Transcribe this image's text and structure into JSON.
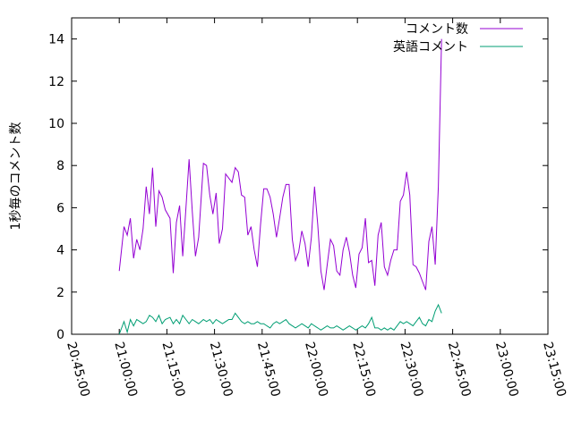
{
  "chart_data": {
    "type": "line",
    "title": "",
    "xlabel": "",
    "ylabel": "1秒毎のコメント数",
    "x_range": [
      "20:45:00",
      "23:15:00"
    ],
    "ylim": [
      0,
      15
    ],
    "grid": false,
    "legend_position": "top-right",
    "y_ticks": [
      "0",
      "2",
      "4",
      "6",
      "8",
      "10",
      "12",
      "14"
    ],
    "x_ticks": [
      "20:45:00",
      "21:00:00",
      "21:15:00",
      "21:30:00",
      "21:45:00",
      "22:00:00",
      "22:15:00",
      "22:30:00",
      "22:45:00",
      "23:00:00",
      "23:15:00"
    ],
    "series": [
      {
        "name": "コメント数",
        "color": "#9400d3",
        "points": [
          [
            "21:00:00",
            3.0
          ],
          [
            "21:01:30",
            5.1
          ],
          [
            "21:02:30",
            4.7
          ],
          [
            "21:03:30",
            5.5
          ],
          [
            "21:04:30",
            3.6
          ],
          [
            "21:05:30",
            4.5
          ],
          [
            "21:06:30",
            4.0
          ],
          [
            "21:07:30",
            5.0
          ],
          [
            "21:08:30",
            7.0
          ],
          [
            "21:09:30",
            5.7
          ],
          [
            "21:10:30",
            7.9
          ],
          [
            "21:11:30",
            5.1
          ],
          [
            "21:12:30",
            6.8
          ],
          [
            "21:13:30",
            6.5
          ],
          [
            "21:14:30",
            5.9
          ],
          [
            "21:16:00",
            5.5
          ],
          [
            "21:17:00",
            2.9
          ],
          [
            "21:18:00",
            5.3
          ],
          [
            "21:19:00",
            6.1
          ],
          [
            "21:20:00",
            3.7
          ],
          [
            "21:21:00",
            6.0
          ],
          [
            "21:22:00",
            8.3
          ],
          [
            "21:23:00",
            5.8
          ],
          [
            "21:24:00",
            3.7
          ],
          [
            "21:25:00",
            4.6
          ],
          [
            "21:26:30",
            8.1
          ],
          [
            "21:27:30",
            8.0
          ],
          [
            "21:28:30",
            6.6
          ],
          [
            "21:29:30",
            5.7
          ],
          [
            "21:30:30",
            6.7
          ],
          [
            "21:31:30",
            4.3
          ],
          [
            "21:32:30",
            5.0
          ],
          [
            "21:33:30",
            7.6
          ],
          [
            "21:34:30",
            7.4
          ],
          [
            "21:35:30",
            7.2
          ],
          [
            "21:36:30",
            7.9
          ],
          [
            "21:37:30",
            7.7
          ],
          [
            "21:38:30",
            6.6
          ],
          [
            "21:39:30",
            6.5
          ],
          [
            "21:40:30",
            4.7
          ],
          [
            "21:41:30",
            5.1
          ],
          [
            "21:42:30",
            4.0
          ],
          [
            "21:43:30",
            3.2
          ],
          [
            "21:44:30",
            5.2
          ],
          [
            "21:45:30",
            6.9
          ],
          [
            "21:46:30",
            6.9
          ],
          [
            "21:47:30",
            6.5
          ],
          [
            "21:48:30",
            5.7
          ],
          [
            "21:49:30",
            4.6
          ],
          [
            "21:50:30",
            5.5
          ],
          [
            "21:51:30",
            6.5
          ],
          [
            "21:52:30",
            7.1
          ],
          [
            "21:53:30",
            7.1
          ],
          [
            "21:54:30",
            4.5
          ],
          [
            "21:55:30",
            3.5
          ],
          [
            "21:56:30",
            3.9
          ],
          [
            "21:57:30",
            4.9
          ],
          [
            "21:58:30",
            4.3
          ],
          [
            "21:59:30",
            3.2
          ],
          [
            "22:00:30",
            4.6
          ],
          [
            "22:01:30",
            7.0
          ],
          [
            "22:02:30",
            5.2
          ],
          [
            "22:03:30",
            3.0
          ],
          [
            "22:04:30",
            2.1
          ],
          [
            "22:05:30",
            3.3
          ],
          [
            "22:06:30",
            4.5
          ],
          [
            "22:07:30",
            4.2
          ],
          [
            "22:08:30",
            3.0
          ],
          [
            "22:09:30",
            2.8
          ],
          [
            "22:10:30",
            4.0
          ],
          [
            "22:11:30",
            4.6
          ],
          [
            "22:12:30",
            3.9
          ],
          [
            "22:13:30",
            2.8
          ],
          [
            "22:14:30",
            2.2
          ],
          [
            "22:15:30",
            3.8
          ],
          [
            "22:16:30",
            4.1
          ],
          [
            "22:17:30",
            5.5
          ],
          [
            "22:18:30",
            3.4
          ],
          [
            "22:19:30",
            3.5
          ],
          [
            "22:20:30",
            2.3
          ],
          [
            "22:21:30",
            4.7
          ],
          [
            "22:22:30",
            5.3
          ],
          [
            "22:23:30",
            3.2
          ],
          [
            "22:24:30",
            2.8
          ],
          [
            "22:25:30",
            3.5
          ],
          [
            "22:26:30",
            4.0
          ],
          [
            "22:27:30",
            4.0
          ],
          [
            "22:28:30",
            6.3
          ],
          [
            "22:29:30",
            6.6
          ],
          [
            "22:30:30",
            7.7
          ],
          [
            "22:31:30",
            6.6
          ],
          [
            "22:32:30",
            3.3
          ],
          [
            "22:33:30",
            3.2
          ],
          [
            "22:34:30",
            2.9
          ],
          [
            "22:35:30",
            2.5
          ],
          [
            "22:36:30",
            2.1
          ],
          [
            "22:37:30",
            4.4
          ],
          [
            "22:38:30",
            5.1
          ],
          [
            "22:39:30",
            3.3
          ],
          [
            "22:40:30",
            7.0
          ],
          [
            "22:41:30",
            14.0
          ]
        ]
      },
      {
        "name": "英語コメント",
        "color": "#009e73",
        "points": [
          [
            "21:00:00",
            0.0
          ],
          [
            "21:01:30",
            0.6
          ],
          [
            "21:02:30",
            0.1
          ],
          [
            "21:03:30",
            0.7
          ],
          [
            "21:04:30",
            0.4
          ],
          [
            "21:05:30",
            0.7
          ],
          [
            "21:06:30",
            0.6
          ],
          [
            "21:07:30",
            0.5
          ],
          [
            "21:08:30",
            0.6
          ],
          [
            "21:09:30",
            0.9
          ],
          [
            "21:10:30",
            0.8
          ],
          [
            "21:11:30",
            0.6
          ],
          [
            "21:12:30",
            0.9
          ],
          [
            "21:13:30",
            0.5
          ],
          [
            "21:14:30",
            0.7
          ],
          [
            "21:16:00",
            0.8
          ],
          [
            "21:17:00",
            0.5
          ],
          [
            "21:18:00",
            0.7
          ],
          [
            "21:19:00",
            0.5
          ],
          [
            "21:20:00",
            0.9
          ],
          [
            "21:21:00",
            0.7
          ],
          [
            "21:22:00",
            0.5
          ],
          [
            "21:23:00",
            0.7
          ],
          [
            "21:24:00",
            0.6
          ],
          [
            "21:25:00",
            0.5
          ],
          [
            "21:26:30",
            0.7
          ],
          [
            "21:27:30",
            0.6
          ],
          [
            "21:28:30",
            0.7
          ],
          [
            "21:29:30",
            0.5
          ],
          [
            "21:30:30",
            0.7
          ],
          [
            "21:31:30",
            0.6
          ],
          [
            "21:32:30",
            0.5
          ],
          [
            "21:33:30",
            0.6
          ],
          [
            "21:34:30",
            0.7
          ],
          [
            "21:35:30",
            0.7
          ],
          [
            "21:36:30",
            1.0
          ],
          [
            "21:37:30",
            0.8
          ],
          [
            "21:38:30",
            0.6
          ],
          [
            "21:39:30",
            0.5
          ],
          [
            "21:40:30",
            0.6
          ],
          [
            "21:41:30",
            0.5
          ],
          [
            "21:42:30",
            0.5
          ],
          [
            "21:43:30",
            0.6
          ],
          [
            "21:44:30",
            0.5
          ],
          [
            "21:45:30",
            0.5
          ],
          [
            "21:46:30",
            0.4
          ],
          [
            "21:47:30",
            0.3
          ],
          [
            "21:48:30",
            0.5
          ],
          [
            "21:49:30",
            0.6
          ],
          [
            "21:50:30",
            0.5
          ],
          [
            "21:51:30",
            0.6
          ],
          [
            "21:52:30",
            0.7
          ],
          [
            "21:53:30",
            0.5
          ],
          [
            "21:54:30",
            0.4
          ],
          [
            "21:55:30",
            0.3
          ],
          [
            "21:56:30",
            0.4
          ],
          [
            "21:57:30",
            0.5
          ],
          [
            "21:58:30",
            0.4
          ],
          [
            "21:59:30",
            0.3
          ],
          [
            "22:00:30",
            0.5
          ],
          [
            "22:01:30",
            0.4
          ],
          [
            "22:02:30",
            0.3
          ],
          [
            "22:03:30",
            0.2
          ],
          [
            "22:04:30",
            0.3
          ],
          [
            "22:05:30",
            0.4
          ],
          [
            "22:06:30",
            0.3
          ],
          [
            "22:07:30",
            0.3
          ],
          [
            "22:08:30",
            0.4
          ],
          [
            "22:09:30",
            0.3
          ],
          [
            "22:10:30",
            0.2
          ],
          [
            "22:11:30",
            0.3
          ],
          [
            "22:12:30",
            0.4
          ],
          [
            "22:13:30",
            0.3
          ],
          [
            "22:14:30",
            0.2
          ],
          [
            "22:15:30",
            0.3
          ],
          [
            "22:16:30",
            0.4
          ],
          [
            "22:17:30",
            0.3
          ],
          [
            "22:18:30",
            0.5
          ],
          [
            "22:19:30",
            0.8
          ],
          [
            "22:20:30",
            0.3
          ],
          [
            "22:21:30",
            0.3
          ],
          [
            "22:22:30",
            0.2
          ],
          [
            "22:23:30",
            0.3
          ],
          [
            "22:24:30",
            0.2
          ],
          [
            "22:25:30",
            0.3
          ],
          [
            "22:26:30",
            0.2
          ],
          [
            "22:27:30",
            0.4
          ],
          [
            "22:28:30",
            0.6
          ],
          [
            "22:29:30",
            0.5
          ],
          [
            "22:30:30",
            0.6
          ],
          [
            "22:31:30",
            0.5
          ],
          [
            "22:32:30",
            0.4
          ],
          [
            "22:33:30",
            0.6
          ],
          [
            "22:34:30",
            0.8
          ],
          [
            "22:35:30",
            0.5
          ],
          [
            "22:36:30",
            0.4
          ],
          [
            "22:37:30",
            0.7
          ],
          [
            "22:38:30",
            0.6
          ],
          [
            "22:39:30",
            1.1
          ],
          [
            "22:40:30",
            1.4
          ],
          [
            "22:41:30",
            1.0
          ]
        ]
      }
    ]
  }
}
